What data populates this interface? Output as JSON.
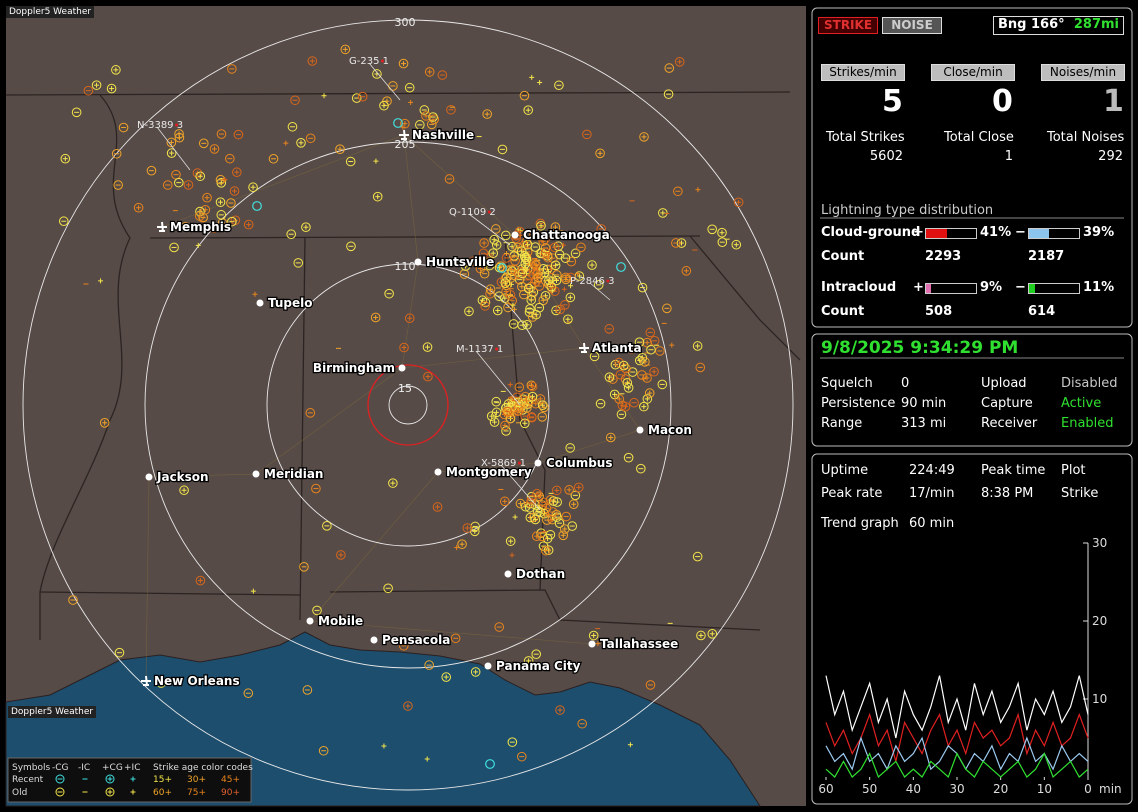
{
  "title": "Doppler5 Weather",
  "map": {
    "ring_labels": [
      "15",
      "110",
      "205",
      "300"
    ],
    "cities": [
      "Nashville",
      "Memphis",
      "Chattanooga",
      "Huntsville",
      "Tupelo",
      "Atlanta",
      "Birmingham",
      "Macon",
      "Columbus",
      "Montgomery",
      "Jackson",
      "Meridian",
      "Dothan",
      "Mobile",
      "Pensacola",
      "Tallahassee",
      "Panama City",
      "New Orleans"
    ],
    "storm_tags": [
      {
        "id": "G-235",
        "count": 1
      },
      {
        "id": "N-3389",
        "count": 3
      },
      {
        "id": "Q-1109",
        "count": 2
      },
      {
        "id": "P-2846",
        "count": 3
      },
      {
        "id": "M-1137",
        "count": 1
      },
      {
        "id": "X-5869",
        "count": 1
      }
    ],
    "legend": {
      "symbols": "Symbols",
      "types": [
        "-CG",
        "-IC",
        "+CG",
        "+IC"
      ],
      "age_title": "Strike age color codes",
      "rows": [
        "Recent",
        "Old"
      ],
      "recent_ages": [
        "15+",
        "30+",
        "45+"
      ],
      "old_ages": [
        "60+",
        "75+",
        "90+"
      ]
    }
  },
  "status": {
    "strike": "STRIKE",
    "noise": "NOISE",
    "bearing": "Bng 166°",
    "distance": "287mi"
  },
  "rates": [
    {
      "label": "Strikes/min",
      "value": 5,
      "total_label": "Total Strikes",
      "total": 5602
    },
    {
      "label": "Close/min",
      "value": 0,
      "total_label": "Total Close",
      "total": 1
    },
    {
      "label": "Noises/min",
      "value": 1,
      "total_label": "Total Noises",
      "total": 292
    }
  ],
  "distribution": {
    "title": "Lightning type distribution",
    "plus": "+",
    "minus": "−",
    "count_label": "Count",
    "rows": [
      {
        "label": "Cloud-ground",
        "pos": {
          "value": 41,
          "label": "41%",
          "color": "#e01010"
        },
        "neg": {
          "value": 39,
          "label": "39%",
          "color": "#8cc4ee"
        },
        "pos_count": 2293,
        "neg_count": 2187
      },
      {
        "label": "Intracloud",
        "pos": {
          "value": 9,
          "label": "9%",
          "color": "#e070b0"
        },
        "neg": {
          "value": 11,
          "label": "11%",
          "color": "#20d020"
        },
        "pos_count": 508,
        "neg_count": 614
      }
    ]
  },
  "clock": "9/8/2025 9:34:29 PM",
  "settings": [
    [
      {
        "label": "Squelch",
        "value": 0
      },
      {
        "label": "Upload",
        "value": "Disabled",
        "color": "#c8c8c8"
      }
    ],
    [
      {
        "label": "Persistence",
        "value": "90 min"
      },
      {
        "label": "Capture",
        "value": "Active",
        "color": "#30e030"
      }
    ],
    [
      {
        "label": "Range",
        "value": "313 mi"
      },
      {
        "label": "Receiver",
        "value": "Enabled",
        "color": "#30e030"
      }
    ]
  ],
  "stats": {
    "uptime_label": "Uptime",
    "uptime": "224:49",
    "peak_time_label": "Peak time",
    "peak_time": "8:38 PM",
    "plot_label": "Plot",
    "plot": "Strike",
    "peak_rate_label": "Peak rate",
    "peak_rate": "17/min",
    "trend_label": "Trend graph",
    "trend": "60 min"
  },
  "trend_graph": {
    "type": "line",
    "xlabel": "min",
    "x": [
      60,
      58,
      56,
      54,
      52,
      50,
      48,
      46,
      44,
      42,
      40,
      38,
      36,
      34,
      32,
      30,
      28,
      26,
      24,
      22,
      20,
      18,
      16,
      14,
      12,
      10,
      8,
      6,
      4,
      2,
      0
    ],
    "xlim": [
      60,
      0
    ],
    "ylim": [
      0,
      30
    ],
    "xticks": [
      60,
      50,
      40,
      30,
      20,
      10,
      0
    ],
    "yticks": [
      10,
      20,
      30
    ],
    "series": [
      {
        "color": "#ffffff",
        "values": [
          13,
          8,
          11,
          6,
          9,
          12,
          7,
          10,
          5,
          11,
          8,
          6,
          9,
          13,
          7,
          10,
          6,
          12,
          8,
          11,
          7,
          9,
          12,
          6,
          10,
          8,
          11,
          7,
          9,
          13,
          8
        ]
      },
      {
        "color": "#e02020",
        "values": [
          7,
          4,
          6,
          3,
          5,
          8,
          4,
          6,
          2,
          7,
          5,
          3,
          6,
          8,
          4,
          6,
          3,
          7,
          5,
          6,
          4,
          5,
          8,
          3,
          6,
          4,
          7,
          4,
          5,
          8,
          5
        ]
      },
      {
        "color": "#9ccaf0",
        "values": [
          4,
          2,
          3,
          1,
          5,
          2,
          3,
          1,
          4,
          2,
          3,
          5,
          1,
          2,
          4,
          3,
          1,
          3,
          2,
          4,
          1,
          3,
          2,
          5,
          2,
          3,
          1,
          4,
          2,
          3,
          2
        ]
      },
      {
        "color": "#30e030",
        "values": [
          1,
          0,
          2,
          0,
          1,
          3,
          0,
          1,
          2,
          0,
          1,
          0,
          2,
          1,
          0,
          3,
          1,
          0,
          2,
          1,
          0,
          1,
          2,
          0,
          1,
          3,
          0,
          1,
          2,
          0,
          1
        ]
      }
    ]
  }
}
